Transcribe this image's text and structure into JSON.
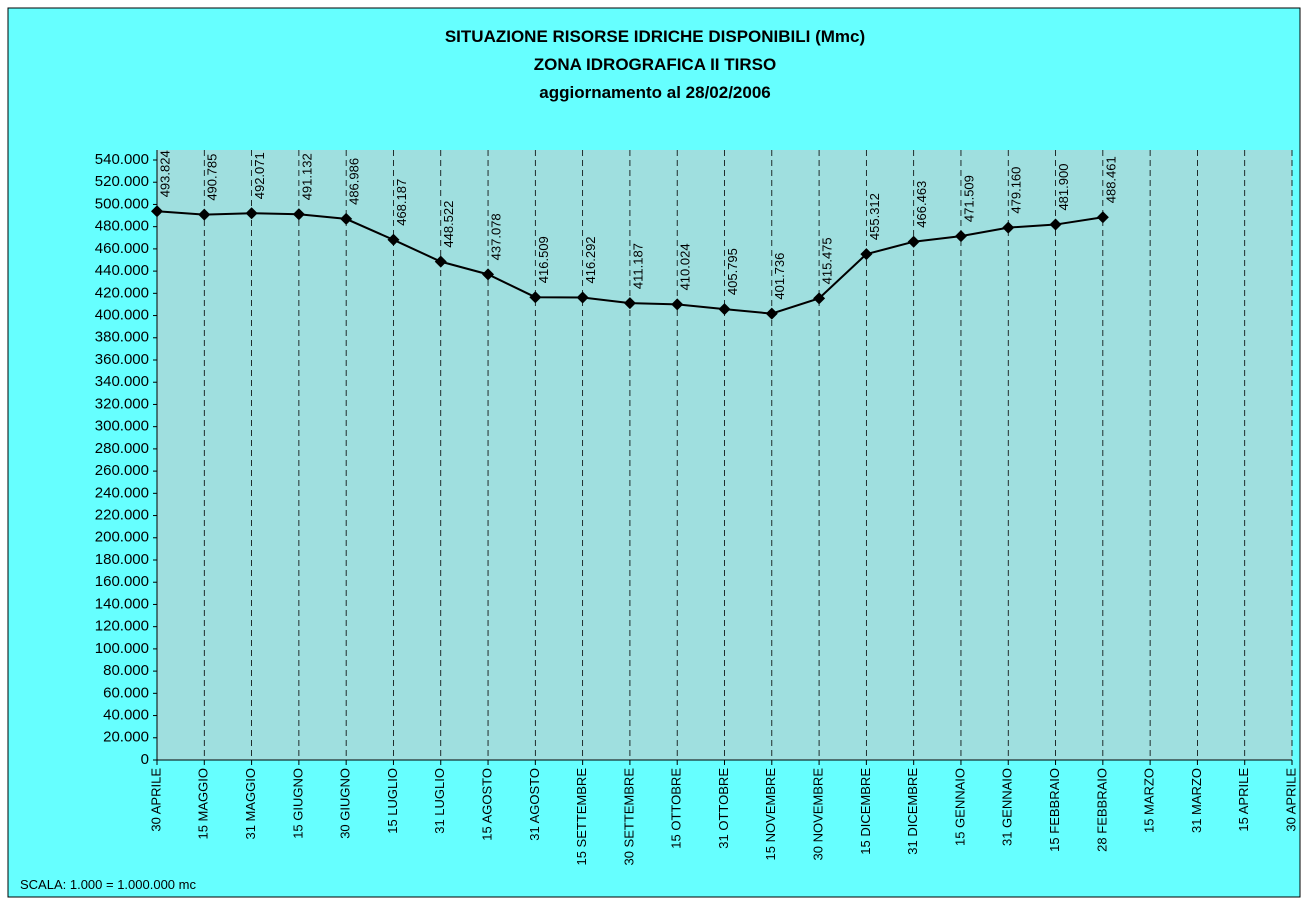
{
  "chart_data": {
    "type": "line",
    "title": "SITUAZIONE RISORSE IDRICHE DISPONIBILI (Mmc)",
    "subtitle": "ZONA IDROGRAFICA II TIRSO",
    "update_note": "aggiornamento al 28/02/2006",
    "footnote": "SCALA: 1.000 = 1.000.000 mc",
    "categories": [
      "30 APRILE",
      "15  MAGGIO",
      "31 MAGGIO",
      "15 GIUGNO",
      "30 GIUGNO",
      "15 LUGLIO",
      "31 LUGLIO",
      "15 AGOSTO",
      "31 AGOSTO",
      "15 SETTEMBRE",
      "30 SETTEMBRE",
      "15 OTTOBRE",
      "31 OTTOBRE",
      "15 NOVEMBRE",
      "30 NOVEMBRE",
      "15 DICEMBRE",
      "31  DICEMBRE",
      "15 GENNAIO",
      "31 GENNAIO",
      "15 FEBBRAIO",
      "28 FEBBRAIO",
      "15 MARZO",
      "31 MARZO",
      "15 APRILE",
      "30 APRILE"
    ],
    "series": [
      {
        "color": "#000000",
        "values": [
          493824,
          490785,
          492071,
          491132,
          486986,
          468187,
          448522,
          437078,
          416509,
          416292,
          411187,
          410024,
          405795,
          401736,
          415475,
          455312,
          466463,
          471509,
          479160,
          481900,
          488461,
          null,
          null,
          null,
          null
        ],
        "value_labels": [
          "493.824",
          "490.785",
          "492.071",
          "491.132",
          "486.986",
          "468.187",
          "448.522",
          "437.078",
          "416.509",
          "416.292",
          "411.187",
          "410.024",
          "405.795",
          "401.736",
          "415.475",
          "455.312",
          "466.463",
          "471.509",
          "479.160",
          "481.900",
          "488.461",
          null,
          null,
          null,
          null
        ]
      }
    ],
    "ylim": [
      0,
      540000
    ],
    "yticks": [
      0,
      {
        "value": 20000,
        "label": "20.000"
      },
      {
        "value": 40000,
        "label": "40.000"
      },
      {
        "value": 60000,
        "label": "60.000"
      },
      {
        "value": 80000,
        "label": "80.000"
      },
      {
        "value": 100000,
        "label": "100.000"
      },
      {
        "value": 120000,
        "label": "120.000"
      },
      {
        "value": 140000,
        "label": "140.000"
      },
      {
        "value": 160000,
        "label": "160.000"
      },
      {
        "value": 180000,
        "label": "180.000"
      },
      {
        "value": 200000,
        "label": "200.000"
      },
      {
        "value": 220000,
        "label": "220.000"
      },
      {
        "value": 240000,
        "label": "240.000"
      },
      {
        "value": 260000,
        "label": "260.000"
      },
      {
        "value": 280000,
        "label": "280.000"
      },
      {
        "value": 300000,
        "label": "300.000"
      },
      {
        "value": 320000,
        "label": "320.000"
      },
      {
        "value": 340000,
        "label": "340.000"
      },
      {
        "value": 360000,
        "label": "360.000"
      },
      {
        "value": 380000,
        "label": "380.000"
      },
      {
        "value": 400000,
        "label": "400.000"
      },
      {
        "value": 420000,
        "label": "420.000"
      },
      {
        "value": 440000,
        "label": "440.000"
      },
      {
        "value": 460000,
        "label": "460.000"
      },
      {
        "value": 480000,
        "label": "480.000"
      },
      {
        "value": 500000,
        "label": "500.000"
      },
      {
        "value": 520000,
        "label": "520.000"
      },
      {
        "value": 540000,
        "label": "540.000"
      }
    ],
    "grid": "x-dashed"
  }
}
